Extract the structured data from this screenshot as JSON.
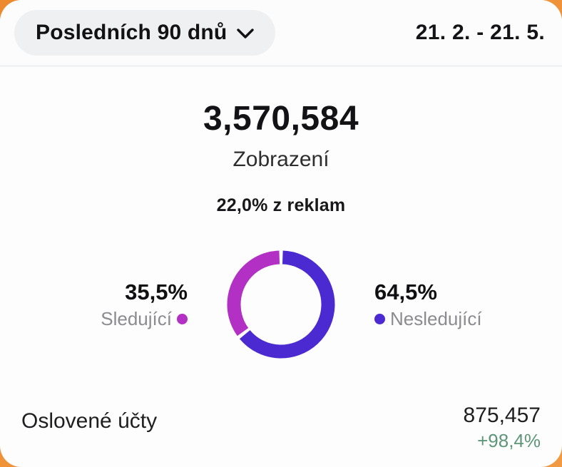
{
  "header": {
    "filter_label": "Posledních 90 dnů",
    "date_range": "21. 2. - 21. 5."
  },
  "views": {
    "value": "3,570,584",
    "label": "Zobrazení",
    "ads_share": "22,0% z reklam"
  },
  "chart_data": {
    "type": "pie",
    "donut": true,
    "start_angle_deg": 0,
    "direction": "clockwise",
    "gap_deg": 4,
    "slices": [
      {
        "label": "Nesledující",
        "pct": 64.5,
        "display_pct": "64,5%",
        "color": "#4c2ad2"
      },
      {
        "label": "Sledující",
        "pct": 35.5,
        "display_pct": "35,5%",
        "color": "#b230c4"
      }
    ]
  },
  "footer": {
    "reach_label": "Oslovené účty",
    "reach_value": "875,457",
    "reach_delta": "+98,4%",
    "delta_color": "#5e9678"
  },
  "colors": {
    "frame_orange": "#ed8a2e",
    "card_bg": "#fdfdfd",
    "pill_bg": "#eef0f1",
    "text_primary": "#131315",
    "text_secondary": "#8b8b90"
  }
}
